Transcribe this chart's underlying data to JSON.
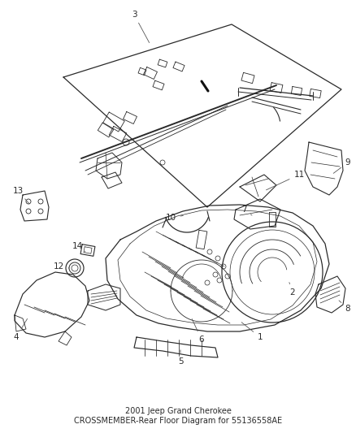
{
  "title": "2001 Jeep Grand Cherokee",
  "subtitle": "CROSSMEMBER-Rear Floor Diagram for 55136558AE",
  "background_color": "#ffffff",
  "line_color": "#2a2a2a",
  "text_color": "#2a2a2a",
  "label_color": "#555555",
  "fig_width": 4.38,
  "fig_height": 5.33,
  "dpi": 100,
  "title_fontsize": 7.0,
  "label_fontsize": 7.5
}
